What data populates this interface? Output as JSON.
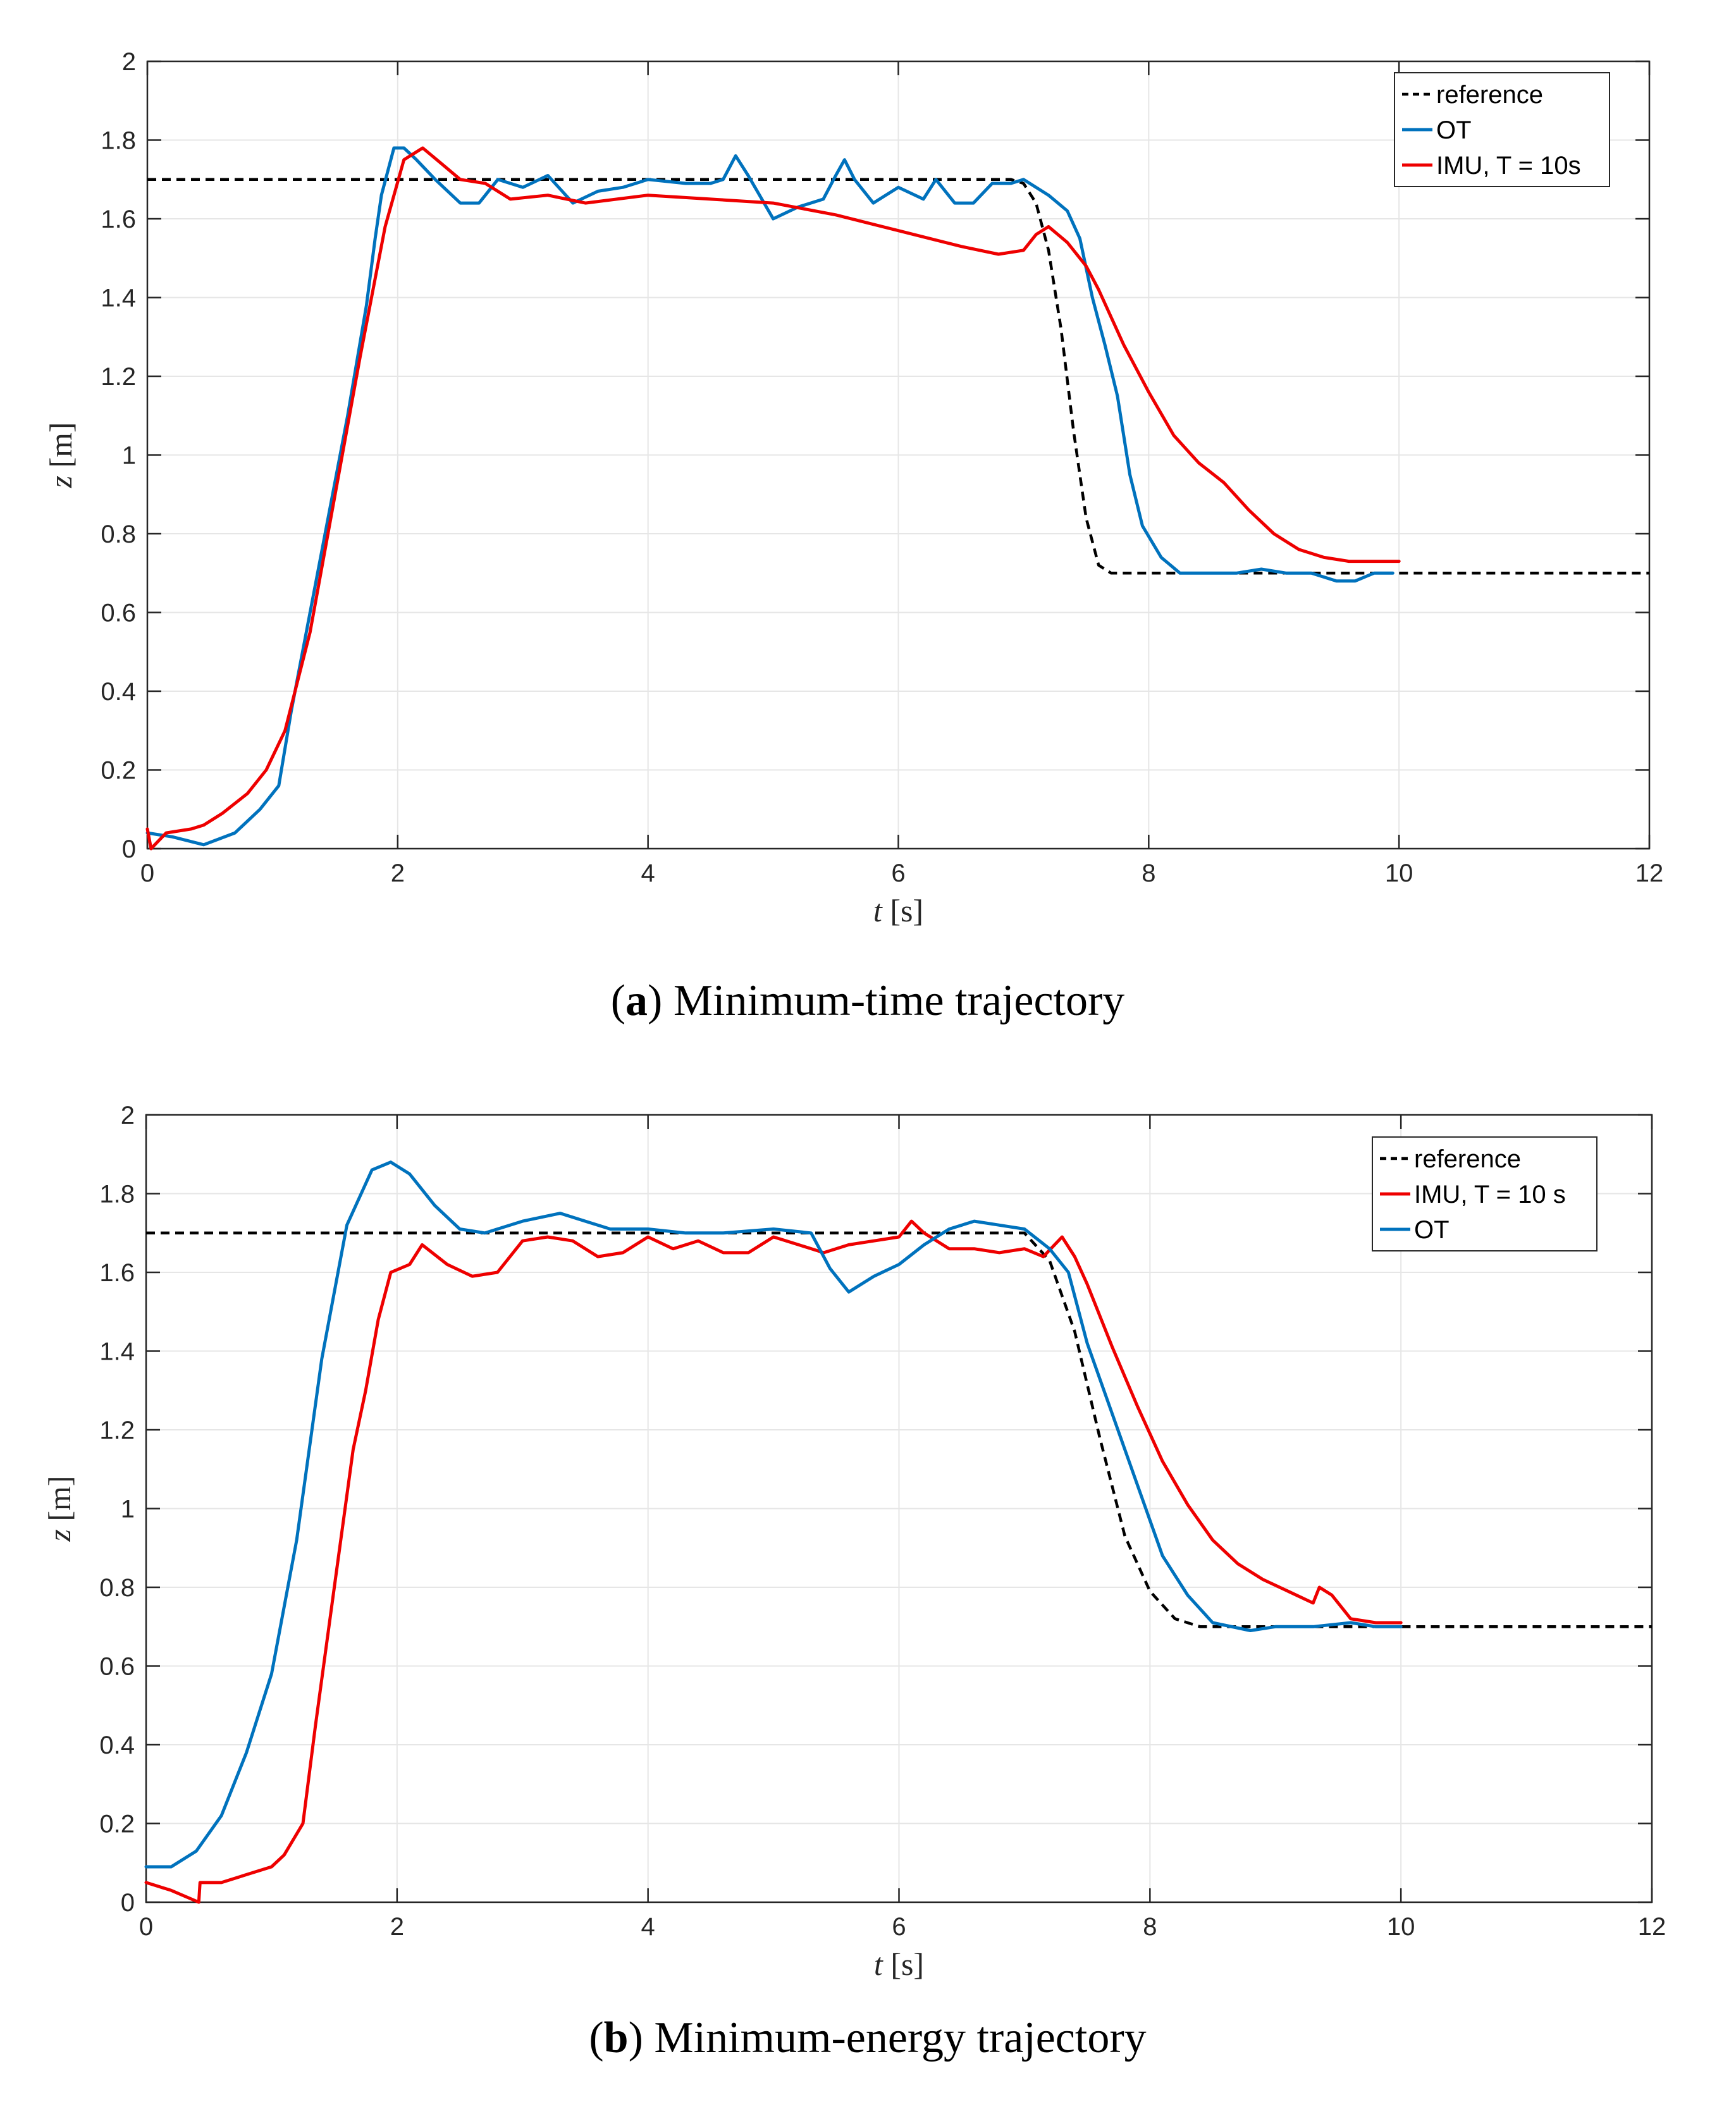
{
  "chart_data": [
    {
      "type": "line",
      "panel_id": "a",
      "caption_letter": "a",
      "caption_text": "Minimum-time trajectory",
      "xlabel_var": "t",
      "xlabel_unit": "[s]",
      "ylabel_var": "z",
      "ylabel_unit": "[m]",
      "xlim": [
        0,
        12
      ],
      "ylim": [
        0,
        2
      ],
      "xticks": [
        0,
        2,
        4,
        6,
        8,
        10,
        12
      ],
      "yticks": [
        0,
        0.2,
        0.4,
        0.6,
        0.8,
        1,
        1.2,
        1.4,
        1.6,
        1.8,
        2
      ],
      "ytick_labels": [
        "0",
        "0.2",
        "0.4",
        "0.6",
        "0.8",
        "1",
        "1.2",
        "1.4",
        "1.6",
        "1.8",
        "2"
      ],
      "xtick_labels": [
        "0",
        "2",
        "4",
        "6",
        "8",
        "10",
        "12"
      ],
      "grid": true,
      "legend_position": "top-right",
      "series": [
        {
          "name": "reference",
          "color": "#000000",
          "style": "dashed",
          "points": [
            [
              0,
              1.7
            ],
            [
              6.9,
              1.7
            ],
            [
              7.0,
              1.69
            ],
            [
              7.1,
              1.64
            ],
            [
              7.2,
              1.52
            ],
            [
              7.3,
              1.32
            ],
            [
              7.4,
              1.06
            ],
            [
              7.5,
              0.84
            ],
            [
              7.6,
              0.72
            ],
            [
              7.7,
              0.7
            ],
            [
              8,
              0.7
            ],
            [
              12,
              0.7
            ]
          ]
        },
        {
          "name": "OT",
          "color": "#0072BD",
          "style": "solid",
          "points": [
            [
              0,
              0.04
            ],
            [
              0.2,
              0.03
            ],
            [
              0.45,
              0.01
            ],
            [
              0.7,
              0.04
            ],
            [
              0.9,
              0.1
            ],
            [
              1.05,
              0.16
            ],
            [
              1.15,
              0.35
            ],
            [
              1.3,
              0.6
            ],
            [
              1.45,
              0.85
            ],
            [
              1.6,
              1.1
            ],
            [
              1.75,
              1.38
            ],
            [
              1.82,
              1.55
            ],
            [
              1.87,
              1.66
            ],
            [
              1.92,
              1.72
            ],
            [
              1.97,
              1.78
            ],
            [
              2.05,
              1.78
            ],
            [
              2.15,
              1.75
            ],
            [
              2.3,
              1.7
            ],
            [
              2.5,
              1.64
            ],
            [
              2.65,
              1.64
            ],
            [
              2.8,
              1.7
            ],
            [
              3.0,
              1.68
            ],
            [
              3.2,
              1.71
            ],
            [
              3.4,
              1.64
            ],
            [
              3.6,
              1.67
            ],
            [
              3.8,
              1.68
            ],
            [
              4.0,
              1.7
            ],
            [
              4.3,
              1.69
            ],
            [
              4.5,
              1.69
            ],
            [
              4.6,
              1.7
            ],
            [
              4.7,
              1.76
            ],
            [
              4.8,
              1.71
            ],
            [
              5.0,
              1.6
            ],
            [
              5.2,
              1.63
            ],
            [
              5.4,
              1.65
            ],
            [
              5.5,
              1.71
            ],
            [
              5.57,
              1.75
            ],
            [
              5.65,
              1.7
            ],
            [
              5.8,
              1.64
            ],
            [
              6.0,
              1.68
            ],
            [
              6.2,
              1.65
            ],
            [
              6.3,
              1.7
            ],
            [
              6.45,
              1.64
            ],
            [
              6.6,
              1.64
            ],
            [
              6.75,
              1.69
            ],
            [
              6.9,
              1.69
            ],
            [
              7.0,
              1.7
            ],
            [
              7.1,
              1.68
            ],
            [
              7.2,
              1.66
            ],
            [
              7.35,
              1.62
            ],
            [
              7.45,
              1.55
            ],
            [
              7.55,
              1.4
            ],
            [
              7.65,
              1.28
            ],
            [
              7.75,
              1.15
            ],
            [
              7.85,
              0.95
            ],
            [
              7.95,
              0.82
            ],
            [
              8.1,
              0.74
            ],
            [
              8.25,
              0.7
            ],
            [
              8.5,
              0.7
            ],
            [
              8.7,
              0.7
            ],
            [
              8.9,
              0.71
            ],
            [
              9.1,
              0.7
            ],
            [
              9.3,
              0.7
            ],
            [
              9.5,
              0.68
            ],
            [
              9.65,
              0.68
            ],
            [
              9.8,
              0.7
            ],
            [
              9.95,
              0.7
            ]
          ]
        },
        {
          "name": "IMU, T = 10s",
          "color": "#EE0000",
          "style": "solid",
          "points": [
            [
              0,
              0.05
            ],
            [
              0.03,
              0.0
            ],
            [
              0.15,
              0.04
            ],
            [
              0.35,
              0.05
            ],
            [
              0.45,
              0.06
            ],
            [
              0.6,
              0.09
            ],
            [
              0.8,
              0.14
            ],
            [
              0.95,
              0.2
            ],
            [
              1.1,
              0.3
            ],
            [
              1.3,
              0.55
            ],
            [
              1.5,
              0.9
            ],
            [
              1.7,
              1.25
            ],
            [
              1.9,
              1.58
            ],
            [
              2.05,
              1.75
            ],
            [
              2.2,
              1.78
            ],
            [
              2.35,
              1.74
            ],
            [
              2.5,
              1.7
            ],
            [
              2.7,
              1.69
            ],
            [
              2.9,
              1.65
            ],
            [
              3.2,
              1.66
            ],
            [
              3.5,
              1.64
            ],
            [
              4.0,
              1.66
            ],
            [
              4.5,
              1.65
            ],
            [
              5.0,
              1.64
            ],
            [
              5.5,
              1.61
            ],
            [
              6.0,
              1.57
            ],
            [
              6.5,
              1.53
            ],
            [
              6.8,
              1.51
            ],
            [
              7.0,
              1.52
            ],
            [
              7.1,
              1.56
            ],
            [
              7.2,
              1.58
            ],
            [
              7.35,
              1.54
            ],
            [
              7.5,
              1.48
            ],
            [
              7.6,
              1.42
            ],
            [
              7.8,
              1.28
            ],
            [
              8.0,
              1.16
            ],
            [
              8.2,
              1.05
            ],
            [
              8.4,
              0.98
            ],
            [
              8.6,
              0.93
            ],
            [
              8.8,
              0.86
            ],
            [
              9.0,
              0.8
            ],
            [
              9.2,
              0.76
            ],
            [
              9.4,
              0.74
            ],
            [
              9.6,
              0.73
            ],
            [
              9.8,
              0.73
            ],
            [
              10.0,
              0.73
            ]
          ]
        }
      ],
      "legend_entries": [
        "reference",
        "OT",
        "IMU, T = 10s"
      ]
    },
    {
      "type": "line",
      "panel_id": "b",
      "caption_letter": "b",
      "caption_text": "Minimum-energy trajectory",
      "xlabel_var": "t",
      "xlabel_unit": "[s]",
      "ylabel_var": "z",
      "ylabel_unit": "[m]",
      "xlim": [
        0,
        12
      ],
      "ylim": [
        0,
        2
      ],
      "xticks": [
        0,
        2,
        4,
        6,
        8,
        10,
        12
      ],
      "yticks": [
        0,
        0.2,
        0.4,
        0.6,
        0.8,
        1,
        1.2,
        1.4,
        1.6,
        1.8,
        2
      ],
      "ytick_labels": [
        "0",
        "0.2",
        "0.4",
        "0.6",
        "0.8",
        "1",
        "1.2",
        "1.4",
        "1.6",
        "1.8",
        "2"
      ],
      "xtick_labels": [
        "0",
        "2",
        "4",
        "6",
        "8",
        "10",
        "12"
      ],
      "grid": true,
      "legend_position": "top-right",
      "series": [
        {
          "name": "reference",
          "color": "#000000",
          "style": "dashed",
          "points": [
            [
              0,
              1.7
            ],
            [
              7.0,
              1.7
            ],
            [
              7.2,
              1.63
            ],
            [
              7.4,
              1.45
            ],
            [
              7.6,
              1.18
            ],
            [
              7.8,
              0.93
            ],
            [
              8.0,
              0.79
            ],
            [
              8.2,
              0.72
            ],
            [
              8.4,
              0.7
            ],
            [
              8.6,
              0.7
            ],
            [
              12,
              0.7
            ]
          ]
        },
        {
          "name": "IMU, T = 10 s",
          "color": "#EE0000",
          "style": "solid",
          "points": [
            [
              0,
              0.05
            ],
            [
              0.2,
              0.03
            ],
            [
              0.42,
              0.0
            ],
            [
              0.43,
              0.05
            ],
            [
              0.6,
              0.05
            ],
            [
              0.8,
              0.07
            ],
            [
              1.0,
              0.09
            ],
            [
              1.1,
              0.12
            ],
            [
              1.25,
              0.2
            ],
            [
              1.35,
              0.45
            ],
            [
              1.5,
              0.8
            ],
            [
              1.65,
              1.15
            ],
            [
              1.75,
              1.3
            ],
            [
              1.85,
              1.48
            ],
            [
              1.95,
              1.6
            ],
            [
              2.1,
              1.62
            ],
            [
              2.2,
              1.67
            ],
            [
              2.4,
              1.62
            ],
            [
              2.6,
              1.59
            ],
            [
              2.8,
              1.6
            ],
            [
              3.0,
              1.68
            ],
            [
              3.2,
              1.69
            ],
            [
              3.4,
              1.68
            ],
            [
              3.6,
              1.64
            ],
            [
              3.8,
              1.65
            ],
            [
              4.0,
              1.69
            ],
            [
              4.2,
              1.66
            ],
            [
              4.4,
              1.68
            ],
            [
              4.6,
              1.65
            ],
            [
              4.8,
              1.65
            ],
            [
              5.0,
              1.69
            ],
            [
              5.2,
              1.67
            ],
            [
              5.4,
              1.65
            ],
            [
              5.6,
              1.67
            ],
            [
              5.8,
              1.68
            ],
            [
              6.0,
              1.69
            ],
            [
              6.1,
              1.73
            ],
            [
              6.2,
              1.7
            ],
            [
              6.4,
              1.66
            ],
            [
              6.6,
              1.66
            ],
            [
              6.8,
              1.65
            ],
            [
              7.0,
              1.66
            ],
            [
              7.15,
              1.64
            ],
            [
              7.3,
              1.69
            ],
            [
              7.4,
              1.64
            ],
            [
              7.5,
              1.57
            ],
            [
              7.7,
              1.41
            ],
            [
              7.9,
              1.26
            ],
            [
              8.1,
              1.12
            ],
            [
              8.3,
              1.01
            ],
            [
              8.5,
              0.92
            ],
            [
              8.7,
              0.86
            ],
            [
              8.9,
              0.82
            ],
            [
              9.1,
              0.79
            ],
            [
              9.3,
              0.76
            ],
            [
              9.35,
              0.8
            ],
            [
              9.45,
              0.78
            ],
            [
              9.6,
              0.72
            ],
            [
              9.8,
              0.71
            ],
            [
              10.0,
              0.71
            ]
          ]
        },
        {
          "name": "OT",
          "color": "#0072BD",
          "style": "solid",
          "points": [
            [
              0,
              0.09
            ],
            [
              0.2,
              0.09
            ],
            [
              0.4,
              0.13
            ],
            [
              0.6,
              0.22
            ],
            [
              0.8,
              0.38
            ],
            [
              1.0,
              0.58
            ],
            [
              1.2,
              0.92
            ],
            [
              1.4,
              1.38
            ],
            [
              1.6,
              1.72
            ],
            [
              1.8,
              1.86
            ],
            [
              1.95,
              1.88
            ],
            [
              2.1,
              1.85
            ],
            [
              2.3,
              1.77
            ],
            [
              2.5,
              1.71
            ],
            [
              2.7,
              1.7
            ],
            [
              3.0,
              1.73
            ],
            [
              3.3,
              1.75
            ],
            [
              3.5,
              1.73
            ],
            [
              3.7,
              1.71
            ],
            [
              4.0,
              1.71
            ],
            [
              4.3,
              1.7
            ],
            [
              4.6,
              1.7
            ],
            [
              5.0,
              1.71
            ],
            [
              5.3,
              1.7
            ],
            [
              5.45,
              1.61
            ],
            [
              5.6,
              1.55
            ],
            [
              5.8,
              1.59
            ],
            [
              6.0,
              1.62
            ],
            [
              6.2,
              1.67
            ],
            [
              6.4,
              1.71
            ],
            [
              6.6,
              1.73
            ],
            [
              6.8,
              1.72
            ],
            [
              7.0,
              1.71
            ],
            [
              7.2,
              1.66
            ],
            [
              7.35,
              1.6
            ],
            [
              7.5,
              1.42
            ],
            [
              7.7,
              1.24
            ],
            [
              7.9,
              1.06
            ],
            [
              8.1,
              0.88
            ],
            [
              8.3,
              0.78
            ],
            [
              8.5,
              0.71
            ],
            [
              8.8,
              0.69
            ],
            [
              9.0,
              0.7
            ],
            [
              9.3,
              0.7
            ],
            [
              9.6,
              0.71
            ],
            [
              9.8,
              0.7
            ],
            [
              10.0,
              0.7
            ]
          ]
        }
      ],
      "legend_entries": [
        "reference",
        "IMU, T = 10 s",
        "OT"
      ]
    }
  ]
}
